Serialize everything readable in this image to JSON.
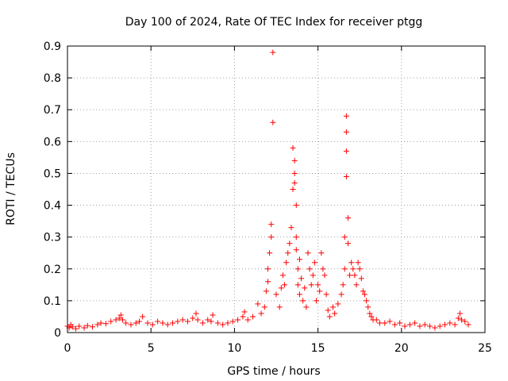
{
  "chart_data": {
    "type": "scatter",
    "title": "Day 100 of 2024, Rate Of TEC Index for receiver ptgg",
    "xlabel": "GPS time / hours",
    "ylabel": "ROTI / TECUs",
    "xlim": [
      0,
      25
    ],
    "ylim": [
      0,
      0.9
    ],
    "xticks": [
      0,
      5,
      10,
      15,
      20,
      25
    ],
    "xtick_labels": [
      "0",
      "5",
      "10",
      "15",
      "20",
      "25"
    ],
    "yticks": [
      0,
      0.1,
      0.2,
      0.3,
      0.4,
      0.5,
      0.6,
      0.7,
      0.8,
      0.9
    ],
    "ytick_labels": [
      "0",
      "0.1",
      "0.2",
      "0.3",
      "0.4",
      "0.5",
      "0.6",
      "0.7",
      "0.8",
      "0.9"
    ],
    "grid": true,
    "legend": "none",
    "marker": "plus",
    "color": "#ff0000",
    "series": [
      {
        "x": [
          0.0,
          0.1,
          0.2,
          0.3,
          0.5,
          0.7,
          1.0,
          1.2,
          1.5,
          1.8,
          2.0,
          2.3,
          2.6,
          2.9,
          3.1,
          3.2,
          3.3,
          3.5,
          3.8,
          4.1,
          4.3,
          4.5,
          4.8,
          5.1,
          5.4,
          5.7,
          6.0,
          6.3,
          6.6,
          6.9,
          7.2,
          7.5,
          7.7,
          7.8,
          8.1,
          8.4,
          8.6,
          8.7,
          9.0,
          9.3,
          9.6,
          9.9,
          10.2,
          10.5,
          10.6,
          10.8,
          11.1,
          11.4,
          11.6,
          11.8,
          11.9,
          12.0,
          12.0,
          12.1,
          12.2,
          12.2,
          12.3,
          12.3,
          12.5,
          12.7,
          12.8,
          12.9,
          13.0,
          13.1,
          13.2,
          13.3,
          13.4,
          13.5,
          13.5,
          13.6,
          13.6,
          13.6,
          13.7,
          13.7,
          13.7,
          13.8,
          13.8,
          13.9,
          13.9,
          14.0,
          14.1,
          14.2,
          14.3,
          14.4,
          14.5,
          14.6,
          14.7,
          14.8,
          14.9,
          15.0,
          15.1,
          15.2,
          15.3,
          15.4,
          15.5,
          15.6,
          15.7,
          15.9,
          16.0,
          16.2,
          16.4,
          16.5,
          16.6,
          16.6,
          16.7,
          16.7,
          16.7,
          16.7,
          16.8,
          16.8,
          16.9,
          17.0,
          17.1,
          17.2,
          17.3,
          17.4,
          17.5,
          17.6,
          17.7,
          17.8,
          17.9,
          18.0,
          18.1,
          18.2,
          18.3,
          18.5,
          18.7,
          19.0,
          19.3,
          19.6,
          19.9,
          20.2,
          20.5,
          20.8,
          21.1,
          21.4,
          21.7,
          22.0,
          22.3,
          22.6,
          22.9,
          23.2,
          23.4,
          23.5,
          23.6,
          23.8,
          24.0
        ],
        "y": [
          0.02,
          0.015,
          0.025,
          0.018,
          0.012,
          0.02,
          0.015,
          0.022,
          0.018,
          0.025,
          0.03,
          0.028,
          0.035,
          0.04,
          0.045,
          0.055,
          0.04,
          0.03,
          0.025,
          0.03,
          0.035,
          0.05,
          0.03,
          0.025,
          0.035,
          0.03,
          0.025,
          0.03,
          0.035,
          0.04,
          0.035,
          0.045,
          0.06,
          0.04,
          0.03,
          0.04,
          0.035,
          0.055,
          0.03,
          0.025,
          0.03,
          0.035,
          0.04,
          0.05,
          0.065,
          0.04,
          0.05,
          0.09,
          0.06,
          0.08,
          0.13,
          0.16,
          0.2,
          0.25,
          0.3,
          0.34,
          0.66,
          0.88,
          0.12,
          0.08,
          0.14,
          0.18,
          0.15,
          0.22,
          0.25,
          0.28,
          0.33,
          0.45,
          0.58,
          0.54,
          0.5,
          0.47,
          0.4,
          0.3,
          0.26,
          0.2,
          0.15,
          0.23,
          0.12,
          0.17,
          0.1,
          0.14,
          0.08,
          0.25,
          0.2,
          0.15,
          0.18,
          0.22,
          0.1,
          0.15,
          0.13,
          0.25,
          0.2,
          0.18,
          0.12,
          0.07,
          0.05,
          0.08,
          0.06,
          0.09,
          0.12,
          0.15,
          0.2,
          0.3,
          0.68,
          0.63,
          0.57,
          0.49,
          0.36,
          0.28,
          0.18,
          0.22,
          0.2,
          0.18,
          0.15,
          0.22,
          0.2,
          0.17,
          0.13,
          0.12,
          0.1,
          0.08,
          0.06,
          0.05,
          0.04,
          0.04,
          0.03,
          0.03,
          0.035,
          0.025,
          0.03,
          0.02,
          0.025,
          0.03,
          0.02,
          0.025,
          0.02,
          0.015,
          0.02,
          0.025,
          0.03,
          0.025,
          0.045,
          0.06,
          0.04,
          0.035,
          0.025
        ]
      }
    ]
  }
}
